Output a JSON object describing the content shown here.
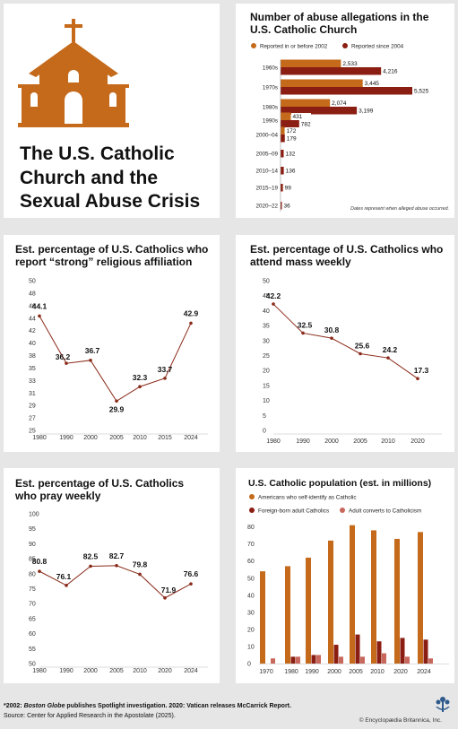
{
  "colors": {
    "orange": "#c46a1a",
    "darkred": "#8b1e12",
    "pink": "#c8675b",
    "line": "#8a2a1a"
  },
  "main": {
    "title": "The U.S. Catholic Church and the Sexual Abuse Crisis",
    "title_lines": [
      "The U.S. Catholic",
      "Church and the",
      "Sexual Abuse Crisis"
    ],
    "icon": "church-icon"
  },
  "footer": {
    "note_prefix": "*2002: ",
    "note_italic": "Boston Globe",
    "note_bold_rest": " publishes Spotlight investigation.",
    "note_rest": " 2020: Vatican releases McCarrick Report.",
    "source": "Source: Center for Applied Research in the Apostolate (2025).",
    "credit": "© Encyclopædia Britannica, Inc."
  },
  "chart_data": [
    {
      "id": "allegations",
      "type": "bar",
      "orientation": "horizontal",
      "title": "Number of abuse allegations in the U.S. Catholic Church",
      "categories": [
        "1960s",
        "1970s",
        "1980s",
        "1990s",
        "2000–04",
        "2005–09",
        "2010–14",
        "2015–19",
        "2020–22"
      ],
      "series": [
        {
          "name": "Reported in or before 2002",
          "values": [
            2533,
            3445,
            2074,
            431,
            172,
            null,
            null,
            null,
            null
          ]
        },
        {
          "name": "Reported since 2004",
          "values": [
            4216,
            5525,
            3199,
            782,
            179,
            132,
            136,
            99,
            36
          ]
        }
      ],
      "labels": [
        [
          "2,533",
          "4,216"
        ],
        [
          "3,445",
          "5,525"
        ],
        [
          "2,074",
          "3,199"
        ],
        [
          "431",
          "782"
        ],
        [
          "172",
          "179"
        ],
        [
          null,
          "132"
        ],
        [
          null,
          "136"
        ],
        [
          null,
          "99"
        ],
        [
          null,
          "36"
        ]
      ],
      "note": "Dates represent when alleged abuse occurred.",
      "xlim": [
        0,
        5525
      ]
    },
    {
      "id": "strong",
      "type": "line",
      "title": "Est. percentage of U.S. Catholics who report “strong” religious affiliation",
      "x": [
        "1980",
        "1990",
        "2000",
        "2005",
        "2010",
        "2015",
        "2024"
      ],
      "values": [
        44.1,
        36.2,
        36.7,
        29.9,
        32.3,
        33.7,
        42.9
      ],
      "value_labels": [
        "44.1",
        "36.2",
        "36.7",
        "29.9",
        "32.3",
        "33.7",
        "42.9"
      ],
      "yticks": [
        "25",
        "27",
        "29",
        "31",
        "33",
        "35",
        "38",
        "40",
        "42",
        "44",
        "46",
        "48",
        "50"
      ],
      "ylim": [
        25,
        50
      ]
    },
    {
      "id": "mass",
      "type": "line",
      "title": "Est. percentage of U.S. Catholics who attend mass weekly",
      "x": [
        "1980",
        "1990",
        "2000",
        "2005",
        "2010",
        "2020"
      ],
      "values": [
        42.2,
        32.5,
        30.8,
        25.6,
        24.2,
        17.3
      ],
      "value_labels": [
        "42.2",
        "32.5",
        "30.8",
        "25.6",
        "24.2",
        "17.3"
      ],
      "yticks": [
        "0",
        "5",
        "10",
        "15",
        "20",
        "25",
        "30",
        "35",
        "40",
        "45",
        "50"
      ],
      "ylim": [
        0,
        50
      ]
    },
    {
      "id": "pray",
      "type": "line",
      "title": "Est. percentage of U.S. Catholics who pray weekly",
      "x": [
        "1980",
        "1990",
        "2000",
        "2005",
        "2010",
        "2020",
        "2024"
      ],
      "values": [
        80.8,
        76.1,
        82.5,
        82.7,
        79.8,
        71.9,
        76.6
      ],
      "value_labels": [
        "80.8",
        "76.1",
        "82.5",
        "82.7",
        "79.8",
        "71.9",
        "76.6"
      ],
      "yticks": [
        "50",
        "55",
        "60",
        "65",
        "70",
        "75",
        "80",
        "85",
        "90",
        "95",
        "100"
      ],
      "ylim": [
        50,
        100
      ]
    },
    {
      "id": "population",
      "type": "bar",
      "title": "U.S. Catholic population (est. in millions)",
      "categories": [
        "1970",
        "1980",
        "1990",
        "2000",
        "2005",
        "2010",
        "2020",
        "2024"
      ],
      "series": [
        {
          "name": "Americans who self-identify as Catholic",
          "values": [
            54,
            57,
            62,
            72,
            81,
            78,
            73,
            77
          ]
        },
        {
          "name": "Foreign-born adult Catholics",
          "values": [
            0,
            4,
            5,
            11,
            17,
            13,
            15,
            14
          ]
        },
        {
          "name": "Adult converts to Catholicism",
          "values": [
            3,
            4,
            5,
            4,
            4,
            6,
            4,
            3
          ]
        }
      ],
      "yticks": [
        "0",
        "10",
        "20",
        "30",
        "40",
        "50",
        "60",
        "70",
        "80"
      ],
      "ylim": [
        0,
        84
      ]
    }
  ]
}
